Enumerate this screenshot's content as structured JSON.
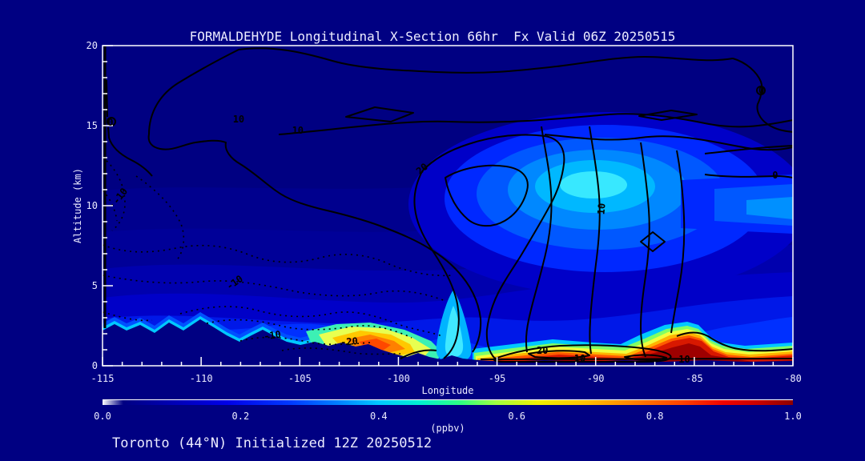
{
  "window": {
    "background_color": "#000082",
    "text_color": "#ECECFF"
  },
  "title": "FORMALDEHYDE Longitudinal X-Section 66hr  Fx Valid 06Z 20250515",
  "footer": "Toronto (44°N) Initialized 12Z 20250512",
  "chart_data": {
    "type": "heatmap",
    "subtype": "filled-contour longitudinal cross-section with line-contour overlay",
    "title": "FORMALDEHYDE Longitudinal X-Section 66hr  Fx Valid 06Z 20250515",
    "xlabel": "Longitude",
    "ylabel": "Altitude (km)",
    "xlim": [
      -115,
      -80
    ],
    "ylim": [
      0,
      20
    ],
    "x_ticks": [
      -115,
      -110,
      -105,
      -100,
      -95,
      -90,
      -85,
      -80
    ],
    "x_minor_step": 1,
    "y_ticks": [
      0,
      5,
      10,
      15,
      20
    ],
    "y_minor_step": 1,
    "grid": false,
    "legend_position": "none",
    "colorbar": {
      "label": "(ppbv)",
      "orientation": "horizontal",
      "min": 0.0,
      "max": 1.0,
      "tick_labels": [
        "0.0",
        "0.2",
        "0.4",
        "0.6",
        "0.8",
        "1.0"
      ],
      "colormap_stops": [
        "#FFFFFF",
        "#000082",
        "#0000E8",
        "#0040FF",
        "#00C8FF",
        "#30FF80",
        "#F0F000",
        "#FFC000",
        "#FF8000",
        "#FF3000",
        "#C80000",
        "#8B0000"
      ]
    },
    "overlay_contours": {
      "values": [
        -20,
        -10,
        0,
        10,
        20
      ],
      "positive_style": "solid",
      "negative_style": "dotted",
      "color": "#000000"
    },
    "contour_labels": [
      {
        "value": "0",
        "lon": -114.6,
        "alt": 15.2,
        "rot": 0
      },
      {
        "value": "-10",
        "lon": -114.1,
        "alt": 10.6,
        "rot": -52
      },
      {
        "value": "10",
        "lon": -108.1,
        "alt": 15.4,
        "rot": 0
      },
      {
        "value": "10",
        "lon": -105.1,
        "alt": 14.7,
        "rot": 0
      },
      {
        "value": "20",
        "lon": -98.8,
        "alt": 12.3,
        "rot": -40
      },
      {
        "value": "10",
        "lon": -89.7,
        "alt": 9.8,
        "rot": -85
      },
      {
        "value": "0",
        "lon": -81.6,
        "alt": 17.2,
        "rot": 0
      },
      {
        "value": "0",
        "lon": -80.9,
        "alt": 11.9,
        "rot": 0
      },
      {
        "value": "-10",
        "lon": -108.3,
        "alt": 5.2,
        "rot": -35
      },
      {
        "value": "-10",
        "lon": -106.4,
        "alt": 1.9,
        "rot": -8
      },
      {
        "value": "-20",
        "lon": -102.5,
        "alt": 1.5,
        "rot": -5
      },
      {
        "value": "20",
        "lon": -92.7,
        "alt": 0.95,
        "rot": 0
      },
      {
        "value": "10",
        "lon": -90.8,
        "alt": 0.45,
        "rot": 0
      },
      {
        "value": "10",
        "lon": -85.5,
        "alt": 0.4,
        "rot": 0
      }
    ],
    "field_summary": [
      {
        "region": "free troposphere over most of domain, 3-20 km",
        "value_ppbv": 0.1
      },
      {
        "region": "upper-tropospheric maximum near -90 deg at 10-12 km",
        "value_ppbv": 0.45
      },
      {
        "region": "boundary-layer plume -104 to -99 deg, 0-1.5 km",
        "value_ppbv": 0.7
      },
      {
        "region": "surface layer -95 to -80 deg, 0-1 km",
        "value_ppbv": 1.0
      },
      {
        "region": "mountain terrain west of about -97 deg (masked, below ground)",
        "value_ppbv": null
      }
    ]
  },
  "palette": {
    "background": "#000082",
    "axis_box": "#FFFFFF",
    "contour_lines": "#000000",
    "upper_blob_core": "#38E8FF",
    "surface_band_core": "#9E0000"
  }
}
